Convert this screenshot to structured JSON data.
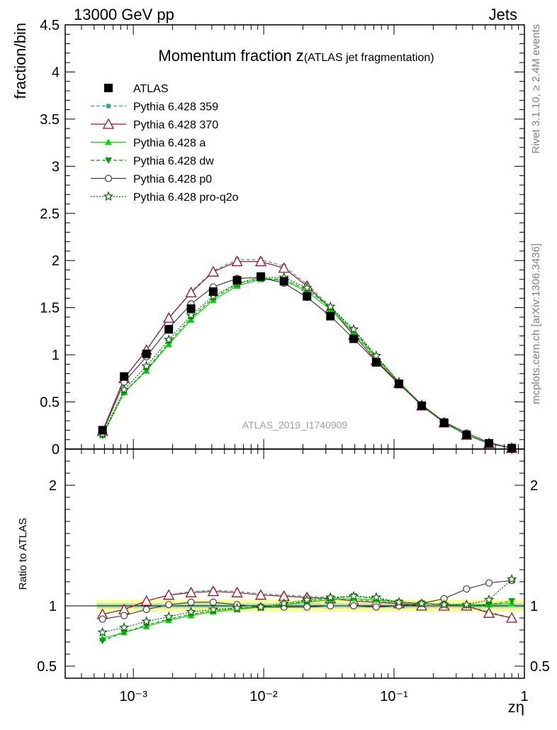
{
  "header": {
    "energy_label": "13000 GeV pp",
    "process_label": "Jets"
  },
  "side_labels": {
    "rivet": "Rivet 3.1.10, ≥ 2.4M events",
    "mcplots": "mcplots.cern.ch [arXiv:1306.3436]"
  },
  "chart_data": {
    "type": "line",
    "title_main": "Momentum fraction z",
    "title_sub": "(ATLAS jet fragmentation)",
    "watermark": "ATLAS_2019_I1740909",
    "xlabel": "zη",
    "ylabel_main": "fraction/bin",
    "ylabel_ratio": "Ratio to ATLAS",
    "x_scale": "log",
    "xlim": [
      0.0003,
      1
    ],
    "ylim_main": [
      0,
      4.5
    ],
    "ylim_ratio": [
      0.4,
      2.3
    ],
    "x_tick_labels": [
      "10⁻³",
      "10⁻²",
      "10⁻¹",
      "1"
    ],
    "y_tick_labels_main": [
      "0",
      "0.5",
      "1",
      "1.5",
      "2",
      "2.5",
      "3",
      "3.5",
      "4",
      "4.5"
    ],
    "y_tick_labels_ratio": [
      "0.5",
      "1",
      "2"
    ],
    "legend_position": "top-left",
    "x": [
      0.00058,
      0.00085,
      0.00126,
      0.00187,
      0.00277,
      0.0041,
      0.00625,
      0.0095,
      0.0143,
      0.0215,
      0.0325,
      0.049,
      0.073,
      0.109,
      0.163,
      0.242,
      0.36,
      0.535,
      0.8
    ],
    "series": [
      {
        "name": "ATLAS",
        "color": "#000000",
        "marker": "filled-square",
        "line": "none",
        "values": [
          0.2,
          0.77,
          1.01,
          1.27,
          1.49,
          1.67,
          1.79,
          1.83,
          1.78,
          1.62,
          1.41,
          1.17,
          0.92,
          0.69,
          0.46,
          0.28,
          0.15,
          0.06,
          0.01
        ]
      },
      {
        "name": "Pythia 6.428 359",
        "color": "#20b090",
        "marker": "filled-square-small",
        "line": "dashed",
        "values": [
          0.19,
          0.75,
          1.05,
          1.39,
          1.67,
          1.89,
          2.01,
          2.01,
          1.94,
          1.75,
          1.51,
          1.23,
          0.96,
          0.71,
          0.47,
          0.29,
          0.15,
          0.06,
          0.01
        ]
      },
      {
        "name": "Pythia 6.428 370",
        "color": "#a0102a",
        "marker": "open-triangle",
        "line": "solid",
        "values": [
          0.19,
          0.75,
          1.05,
          1.39,
          1.66,
          1.88,
          1.99,
          1.99,
          1.92,
          1.73,
          1.49,
          1.21,
          0.94,
          0.7,
          0.46,
          0.28,
          0.15,
          0.06,
          0.01
        ]
      },
      {
        "name": "Pythia 6.428 a",
        "color": "#00dd00",
        "marker": "filled-triangle",
        "line": "solid",
        "values": [
          0.15,
          0.6,
          0.83,
          1.11,
          1.37,
          1.58,
          1.73,
          1.8,
          1.79,
          1.67,
          1.48,
          1.24,
          0.97,
          0.71,
          0.47,
          0.28,
          0.15,
          0.06,
          0.01
        ]
      },
      {
        "name": "Pythia 6.428 dw",
        "color": "#00a000",
        "marker": "filled-triangle-down",
        "line": "dashed",
        "values": [
          0.14,
          0.6,
          0.84,
          1.13,
          1.39,
          1.6,
          1.75,
          1.81,
          1.8,
          1.69,
          1.5,
          1.26,
          0.98,
          0.71,
          0.47,
          0.28,
          0.15,
          0.06,
          0.01
        ]
      },
      {
        "name": "Pythia 6.428 p0",
        "color": "#404040",
        "marker": "open-circle",
        "line": "solid",
        "values": [
          0.18,
          0.71,
          0.98,
          1.28,
          1.54,
          1.72,
          1.81,
          1.82,
          1.76,
          1.61,
          1.41,
          1.17,
          0.93,
          0.69,
          0.47,
          0.29,
          0.17,
          0.07,
          0.01
        ]
      },
      {
        "name": "Pythia 6.428 pro-q2o",
        "color": "#106010",
        "marker": "open-star",
        "line": "dotted",
        "values": [
          0.16,
          0.63,
          0.88,
          1.16,
          1.42,
          1.62,
          1.76,
          1.82,
          1.82,
          1.71,
          1.51,
          1.27,
          0.99,
          0.71,
          0.47,
          0.28,
          0.15,
          0.06,
          0.01
        ]
      }
    ],
    "ratio_series": [
      {
        "name": "Pythia 6.428 359",
        "values": [
          0.93,
          0.97,
          1.04,
          1.09,
          1.12,
          1.13,
          1.12,
          1.1,
          1.09,
          1.08,
          1.07,
          1.05,
          1.04,
          1.03,
          1.02,
          1.01,
          1.0,
          0.95,
          0.9
        ]
      },
      {
        "name": "Pythia 6.428 370",
        "values": [
          0.93,
          0.97,
          1.04,
          1.09,
          1.11,
          1.12,
          1.11,
          1.09,
          1.08,
          1.07,
          1.06,
          1.04,
          1.03,
          1.02,
          1.0,
          1.0,
          1.0,
          0.94,
          0.9
        ]
      },
      {
        "name": "Pythia 6.428 a",
        "values": [
          0.73,
          0.78,
          0.83,
          0.88,
          0.92,
          0.95,
          0.97,
          0.99,
          1.01,
          1.03,
          1.05,
          1.06,
          1.05,
          1.03,
          1.02,
          1.01,
          1.01,
          1.01,
          1.02
        ]
      },
      {
        "name": "Pythia 6.428 dw",
        "values": [
          0.71,
          0.78,
          0.84,
          0.89,
          0.93,
          0.96,
          0.98,
          0.99,
          1.01,
          1.04,
          1.06,
          1.08,
          1.06,
          1.03,
          1.02,
          1.01,
          1.0,
          1.01,
          1.04
        ]
      },
      {
        "name": "Pythia 6.428 p0",
        "values": [
          0.89,
          0.92,
          0.97,
          1.01,
          1.03,
          1.03,
          1.01,
          0.99,
          0.99,
          0.99,
          1.0,
          1.0,
          0.99,
          1.0,
          1.02,
          1.06,
          1.14,
          1.19,
          1.21
        ]
      },
      {
        "name": "Pythia 6.428 pro-q2o",
        "values": [
          0.78,
          0.82,
          0.87,
          0.91,
          0.95,
          0.97,
          0.98,
          0.99,
          1.02,
          1.05,
          1.07,
          1.08,
          1.07,
          1.03,
          1.02,
          1.01,
          1.01,
          1.05,
          1.22
        ]
      }
    ],
    "ratio_band": {
      "inner_color": "#a8e0b8",
      "outer_color": "#ffff99",
      "inner_half_width": 0.02,
      "outer_half_width": 0.05
    }
  }
}
